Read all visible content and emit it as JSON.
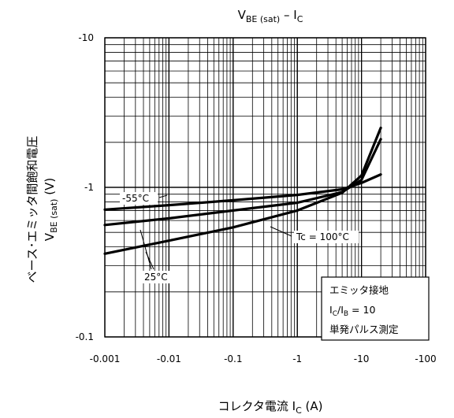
{
  "chart_data": {
    "type": "line",
    "title": {
      "main": "V",
      "sub": "BE (sat)",
      "rest": " – I",
      "rest_sub": "C"
    },
    "xlabel": {
      "main": "コレクタ電流   I",
      "sub": "C",
      "tail": "   (A)"
    },
    "ylabel": {
      "line1": "ベース･エミッタ間飽和電圧",
      "line2_main": "V",
      "line2_sub": "BE (sat)",
      "line2_tail": "   (V)"
    },
    "x_scale": "log",
    "y_scale": "log",
    "xlim": [
      -0.001,
      -100
    ],
    "ylim": [
      -0.1,
      -10
    ],
    "x_ticks": [
      "-0.001",
      "-0.01",
      "-0.1",
      "-1",
      "-10",
      "-100"
    ],
    "y_ticks": [
      "-0.1",
      "-1",
      "-10"
    ],
    "grid": true,
    "series": [
      {
        "name": "-55°C",
        "points": [
          [
            -0.001,
            -0.71
          ],
          [
            -0.01,
            -0.76
          ],
          [
            -0.1,
            -0.82
          ],
          [
            -1,
            -0.89
          ],
          [
            -5,
            -0.97
          ],
          [
            -10,
            -1.07
          ],
          [
            -20,
            -1.22
          ]
        ]
      },
      {
        "name": "25°C",
        "points": [
          [
            -0.001,
            -0.56
          ],
          [
            -0.01,
            -0.62
          ],
          [
            -0.1,
            -0.7
          ],
          [
            -1,
            -0.79
          ],
          [
            -5,
            -0.93
          ],
          [
            -10,
            -1.12
          ],
          [
            -20,
            -2.1
          ]
        ]
      },
      {
        "name": "Tc = 100°C",
        "points": [
          [
            -0.001,
            -0.36
          ],
          [
            -0.01,
            -0.44
          ],
          [
            -0.1,
            -0.54
          ],
          [
            -1,
            -0.7
          ],
          [
            -5,
            -0.92
          ],
          [
            -10,
            -1.2
          ],
          [
            -20,
            -2.5
          ]
        ]
      }
    ],
    "annotation_box": {
      "line1": "エミッタ接地",
      "line2_parts": [
        "I",
        "C",
        "/I",
        "B",
        " = 10"
      ],
      "line3": "単発パルス測定"
    }
  }
}
